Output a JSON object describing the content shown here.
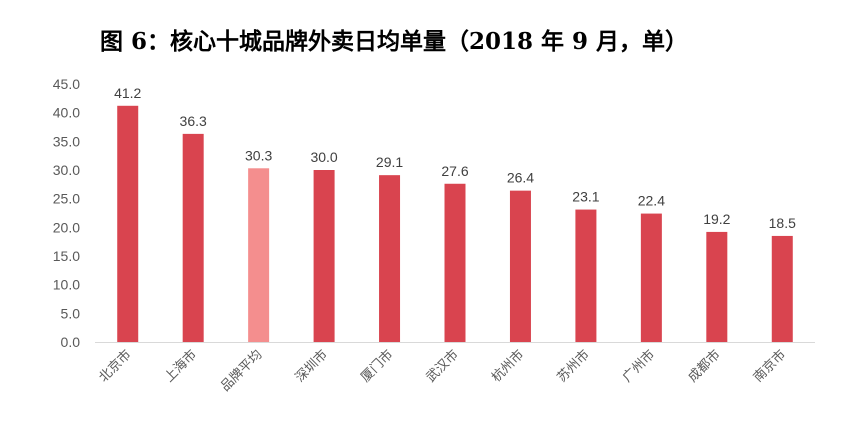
{
  "chart_data": {
    "type": "bar",
    "title": "图 6：核心十城品牌外卖日均单量（2018 年 9 月，单）",
    "categories": [
      "北京市",
      "上海市",
      "品牌平均",
      "深圳市",
      "厦门市",
      "武汉市",
      "杭州市",
      "苏州市",
      "广州市",
      "成都市",
      "南京市"
    ],
    "values": [
      41.2,
      36.3,
      30.3,
      30.0,
      29.1,
      27.6,
      26.4,
      23.1,
      22.4,
      19.2,
      18.5
    ],
    "value_labels": [
      "41.2",
      "36.3",
      "30.3",
      "30.0",
      "29.1",
      "27.6",
      "26.4",
      "23.1",
      "22.4",
      "19.2",
      "18.5"
    ],
    "highlight": "品牌平均",
    "ylim": [
      0,
      45
    ],
    "yticks": [
      "0.0",
      "5.0",
      "10.0",
      "15.0",
      "20.0",
      "25.0",
      "30.0",
      "35.0",
      "40.0",
      "45.0"
    ],
    "xlabel": "",
    "ylabel": "",
    "grid": false,
    "legend": "none",
    "colors": {
      "bar": "#d9444f",
      "highlight": "#f48e8e",
      "axis": "#d9d9d9"
    }
  }
}
